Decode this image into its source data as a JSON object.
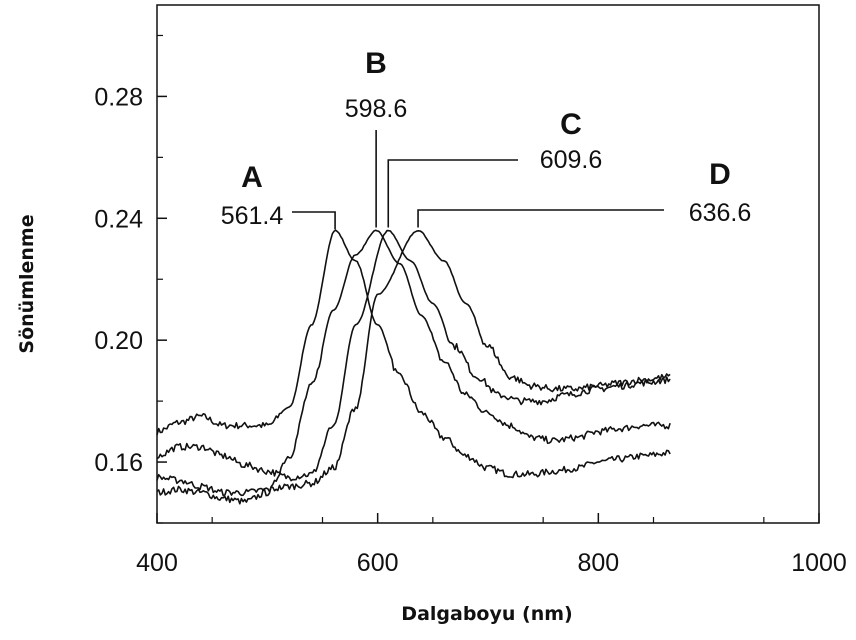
{
  "chart_data": {
    "type": "line",
    "xlabel": "Dalgaboyu (nm)",
    "ylabel": "Sönümlenme",
    "xlim": [
      400,
      1000
    ],
    "ylim": [
      0.14,
      0.31
    ],
    "x_ticks": [
      400,
      600,
      800,
      1000
    ],
    "x_tick_labels": [
      "400",
      "600",
      "800",
      "1000"
    ],
    "y_ticks": [
      0.16,
      0.2,
      0.24,
      0.28
    ],
    "y_tick_labels": [
      "0.16",
      "0.20",
      "0.24",
      "0.28"
    ],
    "grid": false,
    "legend": "none",
    "series": [
      {
        "label": "A",
        "peak": "561.4",
        "x": [
          400,
          420,
          440,
          460,
          480,
          500,
          520,
          540,
          561.4,
          580,
          600,
          620,
          640,
          660,
          680,
          700,
          720,
          740,
          760,
          780,
          800,
          820,
          840,
          865
        ],
        "y": [
          0.17,
          0.173,
          0.175,
          0.172,
          0.172,
          0.172,
          0.178,
          0.205,
          0.236,
          0.226,
          0.205,
          0.188,
          0.176,
          0.168,
          0.162,
          0.158,
          0.156,
          0.156,
          0.157,
          0.158,
          0.16,
          0.161,
          0.162,
          0.163
        ]
      },
      {
        "label": "B",
        "peak": "598.6",
        "x": [
          400,
          420,
          440,
          460,
          480,
          500,
          520,
          540,
          560,
          580,
          598.6,
          620,
          640,
          660,
          680,
          700,
          720,
          740,
          760,
          780,
          800,
          820,
          840,
          865
        ],
        "y": [
          0.15,
          0.151,
          0.15,
          0.148,
          0.147,
          0.15,
          0.162,
          0.185,
          0.21,
          0.228,
          0.236,
          0.225,
          0.208,
          0.193,
          0.182,
          0.176,
          0.172,
          0.168,
          0.167,
          0.168,
          0.17,
          0.171,
          0.172,
          0.172
        ]
      },
      {
        "label": "C",
        "peak": "609.6",
        "x": [
          400,
          420,
          440,
          460,
          480,
          500,
          520,
          540,
          560,
          580,
          609.6,
          630,
          650,
          670,
          690,
          710,
          730,
          750,
          770,
          800,
          820,
          840,
          865
        ],
        "y": [
          0.162,
          0.165,
          0.165,
          0.162,
          0.159,
          0.157,
          0.155,
          0.156,
          0.172,
          0.205,
          0.236,
          0.226,
          0.212,
          0.198,
          0.188,
          0.182,
          0.18,
          0.18,
          0.182,
          0.184,
          0.185,
          0.186,
          0.187
        ]
      },
      {
        "label": "D",
        "peak": "636.6",
        "x": [
          400,
          420,
          440,
          460,
          480,
          500,
          520,
          540,
          560,
          580,
          600,
          636.6,
          660,
          680,
          700,
          720,
          740,
          760,
          780,
          800,
          820,
          840,
          865
        ],
        "y": [
          0.155,
          0.154,
          0.152,
          0.15,
          0.15,
          0.151,
          0.152,
          0.153,
          0.158,
          0.178,
          0.215,
          0.236,
          0.226,
          0.212,
          0.198,
          0.188,
          0.185,
          0.184,
          0.184,
          0.185,
          0.186,
          0.187,
          0.188
        ]
      }
    ]
  }
}
